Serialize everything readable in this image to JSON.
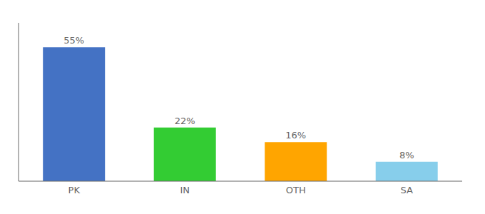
{
  "chart_data": {
    "type": "bar",
    "categories": [
      "PK",
      "IN",
      "OTH",
      "SA"
    ],
    "values": [
      55,
      22,
      16,
      8
    ],
    "value_labels": [
      "55%",
      "22%",
      "16%",
      "8%"
    ],
    "colors": [
      "#4472C4",
      "#33CC33",
      "#FFA500",
      "#87CEEB"
    ],
    "ylim": [
      0,
      65
    ],
    "data_labels": true,
    "tick_labels": "x",
    "grid": false
  }
}
